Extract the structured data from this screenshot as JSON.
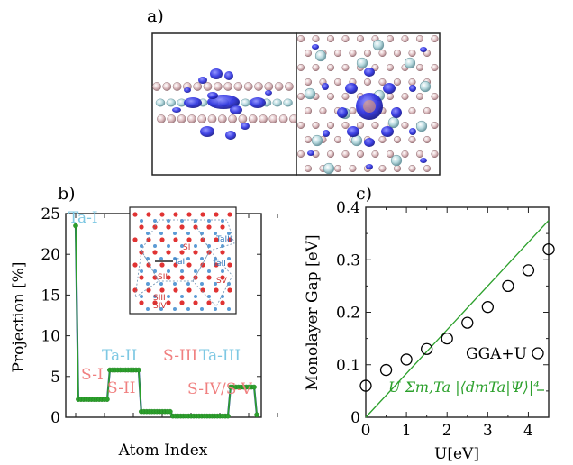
{
  "panel_labels": {
    "a": "a)",
    "b": "b)",
    "c": "c)"
  },
  "chart_data": [
    {
      "type": "line",
      "panel": "b",
      "xlabel": "Atom Index",
      "ylabel": "Projection [%]",
      "ylim": [
        0,
        25
      ],
      "yticks": [
        0,
        5,
        10,
        15,
        20,
        25
      ],
      "xlim": [
        0,
        71
      ],
      "grid": false,
      "color": "#2ca02c",
      "annotations": [
        {
          "text": "Ta-I",
          "color": "#7ec8e3"
        },
        {
          "text": "S-I",
          "color": "#f08080"
        },
        {
          "text": "Ta-II",
          "color": "#7ec8e3"
        },
        {
          "text": "S-II",
          "color": "#f08080"
        },
        {
          "text": "S-III",
          "color": "#f08080"
        },
        {
          "text": "Ta-III",
          "color": "#7ec8e3"
        },
        {
          "text": "S-IV/S-V",
          "color": "#f08080"
        }
      ],
      "series": [
        {
          "values": [
            23.5,
            2.2,
            2.2,
            2.2,
            2.2,
            2.2,
            2.2,
            2.2,
            2.2,
            2.2,
            2.2,
            2.2,
            2.2,
            5.8,
            5.8,
            5.8,
            5.8,
            5.8,
            5.8,
            5.8,
            5.8,
            5.8,
            5.8,
            5.8,
            5.8,
            0.7,
            0.7,
            0.7,
            0.7,
            0.7,
            0.7,
            0.7,
            0.7,
            0.7,
            0.7,
            0.7,
            0.7,
            0.15,
            0.15,
            0.15,
            0.15,
            0.15,
            0.15,
            0.15,
            0.15,
            0.15,
            0.15,
            0.15,
            0.15,
            0.15,
            0.15,
            0.15,
            0.15,
            0.15,
            0.15,
            0.15,
            0.15,
            0.15,
            0.15,
            3.7,
            3.7,
            3.7,
            3.7,
            3.7,
            3.7,
            3.7,
            3.7,
            3.7,
            3.7,
            0.3
          ]
        }
      ]
    },
    {
      "type": "scatter",
      "panel": "c",
      "xlabel": "U[eV]",
      "ylabel": "Monolayer Gap [eV]",
      "xlim": [
        0,
        4.5
      ],
      "ylim": [
        0,
        0.4
      ],
      "xticks": [
        0,
        1,
        2,
        3,
        4
      ],
      "yticks": [
        0,
        0.1,
        0.2,
        0.3,
        0.4
      ],
      "ytick_labels": [
        "0",
        "0.1",
        "0.2",
        "0.3",
        "0.4"
      ],
      "grid": false,
      "legend_position": "bottom-right",
      "series": [
        {
          "name": "GGA+U",
          "marker": "open-circle",
          "color": "#000000",
          "x": [
            0,
            0.5,
            1.0,
            1.5,
            2.0,
            2.5,
            3.0,
            3.5,
            4.0,
            4.5
          ],
          "y": [
            0.06,
            0.09,
            0.11,
            0.13,
            0.15,
            0.18,
            0.21,
            0.25,
            0.28,
            0.32
          ]
        },
        {
          "name": "U Σm,Ta |⟨dmTa|Ψ⟩|⁴",
          "marker": "line",
          "color": "#2ca02c",
          "x": [
            0,
            4.5
          ],
          "y": [
            0,
            0.375
          ]
        }
      ]
    }
  ],
  "inset_labels": {
    "s1": "SI",
    "s2": "SII",
    "s3": "SIII",
    "s4": "SIV",
    "s5": "SV",
    "ta1": "TaI",
    "ta2": "TaII",
    "ta3": "TaIII"
  }
}
